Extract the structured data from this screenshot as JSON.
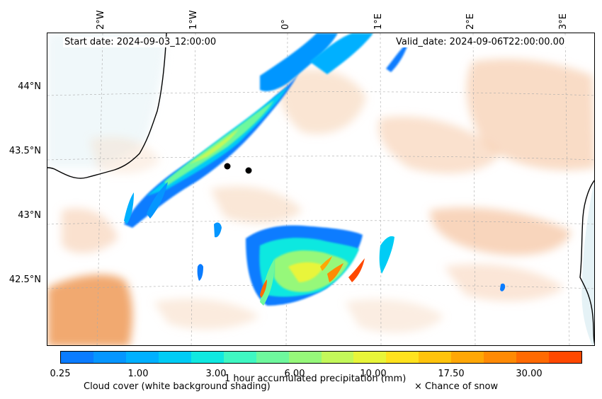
{
  "map": {
    "start_date": "Start date: 2024-09-03_12:00:00",
    "valid_date": "Valid_date: 2024-09-06T22:00:00.00",
    "lat_labels": [
      "44°N",
      "43.5°N",
      "43°N",
      "42.5°N"
    ],
    "lon_labels": [
      "2°W",
      "1°W",
      "0°",
      "1°E",
      "2°E",
      "3°E"
    ]
  },
  "colorbar": {
    "title": "1 hour accumulated precipitation (mm)",
    "tick_labels": [
      "0.25",
      "1.00",
      "3.00",
      "6.00",
      "10.00",
      "17.50",
      "30.00"
    ],
    "colors": [
      "#0a7cff",
      "#0596ff",
      "#00b0ff",
      "#00ccf5",
      "#10e8e0",
      "#3ff7c2",
      "#6ef89d",
      "#96f87a",
      "#c3f85a",
      "#e8f53a",
      "#ffe21e",
      "#ffc30c",
      "#ffa706",
      "#ff8a04",
      "#ff6a02",
      "#ff4800"
    ]
  },
  "legend": {
    "cloud_cover": "Cloud cover (white background shading)",
    "snow": "× Chance of snow"
  },
  "colors": {
    "cloud_orange": "#f0a060",
    "sea_blue": "#cfe7ef",
    "coastline": "#000000"
  }
}
